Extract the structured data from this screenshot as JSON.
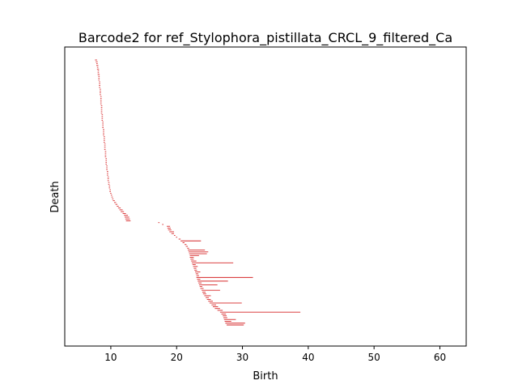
{
  "chart_data": {
    "type": "barcode",
    "title": "Barcode2 for ref_Stylophora_pistillata_CRCL_9_filtered_Ca",
    "xlabel": "Birth",
    "ylabel": "Death",
    "xlim": [
      3,
      64
    ],
    "xticks": [
      10,
      20,
      30,
      40,
      50,
      60
    ],
    "yticks": [],
    "grid": false,
    "legend": "none",
    "bar_color": "#d62728",
    "bars": [
      [
        7.6,
        7.9
      ],
      [
        7.7,
        8.0
      ],
      [
        7.8,
        8.0
      ],
      [
        7.8,
        8.1
      ],
      [
        7.9,
        8.1
      ],
      [
        7.9,
        8.2
      ],
      [
        8.0,
        8.2
      ],
      [
        8.0,
        8.2
      ],
      [
        8.0,
        8.3
      ],
      [
        8.1,
        8.3
      ],
      [
        8.1,
        8.3
      ],
      [
        8.1,
        8.3
      ],
      [
        8.2,
        8.4
      ],
      [
        8.2,
        8.4
      ],
      [
        8.2,
        8.4
      ],
      [
        8.2,
        8.4
      ],
      [
        8.3,
        8.5
      ],
      [
        8.3,
        8.5
      ],
      [
        8.3,
        8.5
      ],
      [
        8.3,
        8.5
      ],
      [
        8.4,
        8.6
      ],
      [
        8.4,
        8.6
      ],
      [
        8.4,
        8.6
      ],
      [
        8.4,
        8.6
      ],
      [
        8.4,
        8.6
      ],
      [
        8.5,
        8.7
      ],
      [
        8.5,
        8.7
      ],
      [
        8.5,
        8.7
      ],
      [
        8.5,
        8.7
      ],
      [
        8.5,
        8.7
      ],
      [
        8.6,
        8.8
      ],
      [
        8.6,
        8.8
      ],
      [
        8.6,
        8.8
      ],
      [
        8.6,
        8.8
      ],
      [
        8.7,
        8.9
      ],
      [
        8.7,
        8.9
      ],
      [
        8.7,
        8.9
      ],
      [
        8.7,
        8.9
      ],
      [
        8.8,
        9.0
      ],
      [
        8.8,
        9.0
      ],
      [
        8.8,
        9.0
      ],
      [
        8.8,
        9.0
      ],
      [
        8.9,
        9.1
      ],
      [
        8.9,
        9.1
      ],
      [
        8.9,
        9.1
      ],
      [
        8.9,
        9.1
      ],
      [
        9.0,
        9.2
      ],
      [
        9.0,
        9.2
      ],
      [
        9.0,
        9.2
      ],
      [
        9.0,
        9.2
      ],
      [
        9.1,
        9.3
      ],
      [
        9.1,
        9.3
      ],
      [
        9.1,
        9.3
      ],
      [
        9.1,
        9.3
      ],
      [
        9.2,
        9.4
      ],
      [
        9.2,
        9.4
      ],
      [
        9.2,
        9.4
      ],
      [
        9.2,
        9.4
      ],
      [
        9.3,
        9.5
      ],
      [
        9.3,
        9.5
      ],
      [
        9.3,
        9.5
      ],
      [
        9.4,
        9.6
      ],
      [
        9.4,
        9.6
      ],
      [
        9.4,
        9.6
      ],
      [
        9.5,
        9.7
      ],
      [
        9.5,
        9.7
      ],
      [
        9.5,
        9.7
      ],
      [
        9.6,
        9.8
      ],
      [
        9.6,
        9.8
      ],
      [
        9.7,
        9.9
      ],
      [
        9.7,
        9.9
      ],
      [
        9.8,
        10.0
      ],
      [
        9.8,
        10.0
      ],
      [
        9.9,
        10.1
      ],
      [
        10.0,
        10.2
      ],
      [
        10.1,
        10.3
      ],
      [
        10.2,
        10.4
      ],
      [
        10.3,
        10.6
      ],
      [
        10.5,
        10.8
      ],
      [
        10.7,
        11.0
      ],
      [
        10.9,
        11.2
      ],
      [
        11.1,
        11.5
      ],
      [
        11.3,
        11.8
      ],
      [
        11.5,
        12.0
      ],
      [
        11.8,
        12.3
      ],
      [
        12.0,
        12.6
      ],
      [
        12.1,
        12.8
      ],
      [
        12.2,
        12.9
      ],
      [
        12.3,
        13.0
      ],
      [
        17.2,
        17.4
      ],
      [
        17.8,
        18.0
      ],
      [
        18.5,
        19.0
      ],
      [
        18.6,
        19.1
      ],
      [
        18.7,
        19.2
      ],
      [
        18.9,
        19.6
      ],
      [
        19.2,
        19.6
      ],
      [
        19.6,
        19.8
      ],
      [
        19.9,
        20.1
      ],
      [
        20.3,
        20.6
      ],
      [
        20.6,
        23.7
      ],
      [
        20.9,
        21.2
      ],
      [
        21.2,
        21.5
      ],
      [
        21.4,
        21.7
      ],
      [
        21.6,
        21.9
      ],
      [
        21.7,
        24.3
      ],
      [
        21.8,
        24.8
      ],
      [
        21.9,
        24.6
      ],
      [
        22.0,
        23.4
      ],
      [
        22.0,
        22.6
      ],
      [
        22.1,
        22.6
      ],
      [
        22.2,
        23.0
      ],
      [
        22.3,
        28.6
      ],
      [
        22.4,
        22.9
      ],
      [
        22.5,
        23.2
      ],
      [
        22.6,
        23.0
      ],
      [
        22.7,
        23.1
      ],
      [
        22.8,
        23.6
      ],
      [
        22.9,
        23.3
      ],
      [
        23.0,
        23.4
      ],
      [
        23.0,
        31.6
      ],
      [
        23.1,
        23.6
      ],
      [
        23.2,
        27.8
      ],
      [
        23.3,
        23.8
      ],
      [
        23.4,
        26.2
      ],
      [
        23.5,
        23.9
      ],
      [
        23.6,
        24.1
      ],
      [
        23.8,
        26.6
      ],
      [
        23.9,
        24.4
      ],
      [
        24.0,
        24.5
      ],
      [
        24.2,
        25.2
      ],
      [
        24.4,
        24.9
      ],
      [
        24.6,
        25.2
      ],
      [
        24.8,
        25.5
      ],
      [
        25.0,
        29.9
      ],
      [
        25.3,
        26.0
      ],
      [
        25.5,
        26.3
      ],
      [
        25.8,
        26.6
      ],
      [
        26.2,
        27.0
      ],
      [
        26.6,
        38.8
      ],
      [
        26.8,
        27.5
      ],
      [
        27.0,
        27.6
      ],
      [
        27.1,
        27.7
      ],
      [
        27.2,
        29.0
      ],
      [
        27.3,
        28.3
      ],
      [
        27.4,
        30.4
      ],
      [
        27.6,
        30.2
      ]
    ]
  }
}
